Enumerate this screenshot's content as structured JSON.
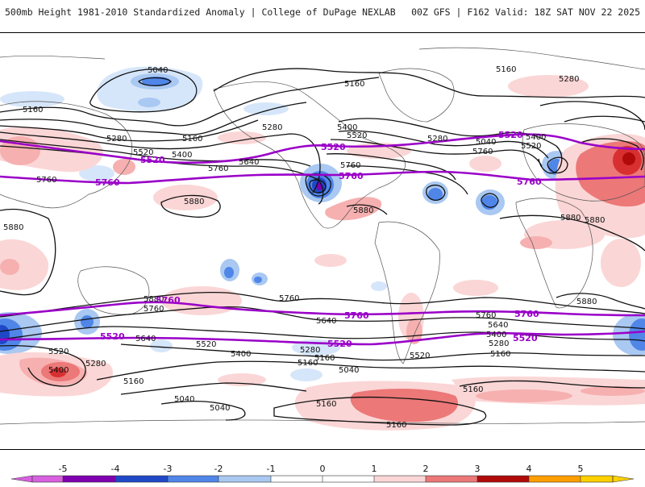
{
  "header": {
    "left_title": "500mb Height 1981-2010 Standardized Anomaly | College of DuPage NEXLAB",
    "right_title": "00Z GFS | F162 Valid: 18Z SAT NOV 22 2025"
  },
  "colors": {
    "contour": "#111111",
    "highlight_contour": "#9a00c8",
    "coast": "#555555",
    "neg5": "#d860e0",
    "neg4": "#7e00b0",
    "neg3": "#1f48c8",
    "neg2": "#4f86e8",
    "neg1": "#a9c8f2",
    "neg05": "#d6e6fa",
    "pos05": "#fbd6d6",
    "pos1": "#f6b0b0",
    "pos2": "#ec7878",
    "pos3": "#d83030",
    "pos4": "#b00a0a",
    "pos5": "#ff9e00",
    "pos6": "#ffd000"
  },
  "contour_labels": {
    "c5040": "5040",
    "c5160": "5160",
    "c5280": "5280",
    "c5400": "5400",
    "c5520": "5520",
    "c5640": "5640",
    "c5760": "5760",
    "c5880": "5880"
  },
  "colorbar": {
    "ticks": [
      "-5",
      "-4",
      "-3",
      "-2",
      "-1",
      "0",
      "1",
      "2",
      "3",
      "4",
      "5"
    ]
  }
}
